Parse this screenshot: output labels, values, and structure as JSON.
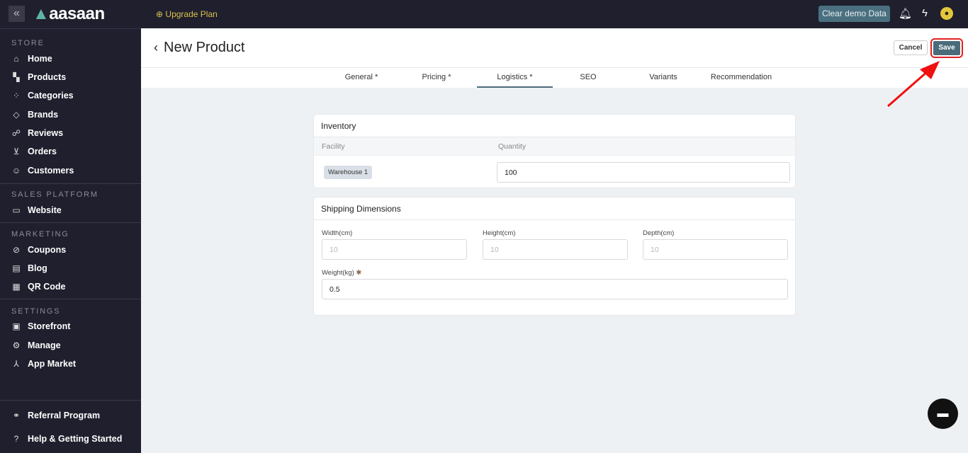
{
  "topbar": {
    "brand": "aasaan",
    "upgrade": "Upgrade Plan",
    "clear_demo": "Clear demo Data"
  },
  "sidebar": {
    "sections": [
      {
        "title": "STORE"
      },
      {
        "title": "SALES PLATFORM"
      },
      {
        "title": "MARKETING"
      },
      {
        "title": "SETTINGS"
      }
    ],
    "items": [
      {
        "label": "Home"
      },
      {
        "label": "Products"
      },
      {
        "label": "Categories"
      },
      {
        "label": "Brands"
      },
      {
        "label": "Reviews"
      },
      {
        "label": "Orders"
      },
      {
        "label": "Customers"
      },
      {
        "label": "Website"
      },
      {
        "label": "Coupons"
      },
      {
        "label": "Blog"
      },
      {
        "label": "QR Code"
      },
      {
        "label": "Storefront"
      },
      {
        "label": "Manage"
      },
      {
        "label": "App Market"
      },
      {
        "label": "Referral Program"
      },
      {
        "label": "Help & Getting Started"
      }
    ]
  },
  "header": {
    "title": "New Product",
    "cancel": "Cancel",
    "save": "Save"
  },
  "tabs": [
    {
      "label": "General *"
    },
    {
      "label": "Pricing *"
    },
    {
      "label": "Logistics *",
      "active": true
    },
    {
      "label": "SEO"
    },
    {
      "label": "Variants"
    },
    {
      "label": "Recommendation"
    }
  ],
  "inventory": {
    "title": "Inventory",
    "col_facility": "Facility",
    "col_quantity": "Quantity",
    "facility": "Warehouse 1",
    "quantity": "100"
  },
  "shipping": {
    "title": "Shipping Dimensions",
    "width_label": "Width(cm)",
    "width_ph": "10",
    "height_label": "Height(cm)",
    "height_ph": "10",
    "depth_label": "Depth(cm)",
    "depth_ph": "10",
    "weight_label": "Weight(kg)",
    "weight": "0.5"
  },
  "colors": {
    "accent": "#4a6b7a",
    "sidebar": "#1f1f2e",
    "highlight": "#e02020"
  }
}
